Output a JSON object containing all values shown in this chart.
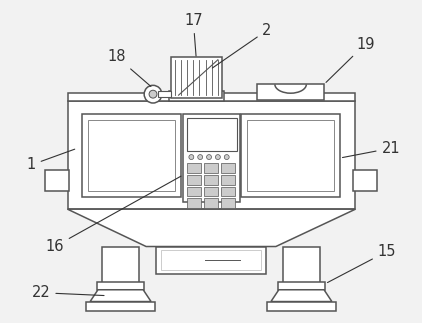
{
  "bg_color": "#f2f2f2",
  "line_color": "#555555",
  "fill_color": "#ffffff",
  "shadow_color": "#cccccc",
  "label_color": "#222222",
  "annotation_color": "#333333",
  "label_fontsize": 10.5
}
